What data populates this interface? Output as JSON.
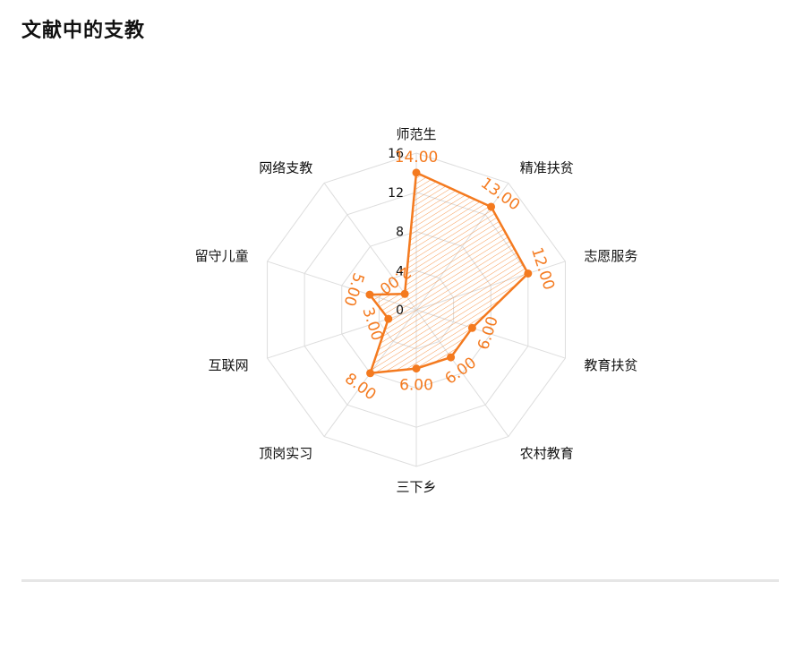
{
  "title": "文献中的支教",
  "colors": {
    "accent": "#f47a1f",
    "grid": "#dddddd",
    "text": "#111111",
    "divider": "#e6e6e6"
  },
  "chart_data": {
    "type": "radar",
    "title": "文献中的支教",
    "categories": [
      "师范生",
      "精准扶贫",
      "志愿服务",
      "教育扶贫",
      "农村教育",
      "三下乡",
      "顶岗实习",
      "互联网",
      "留守儿童",
      "网络支教"
    ],
    "values": [
      14,
      13,
      12,
      6,
      6,
      6,
      8,
      3,
      5,
      2
    ],
    "value_labels": [
      "14.00",
      "13.00",
      "12.00",
      "6.00",
      "6.00",
      "6.00",
      "8.00",
      "3.00",
      "5.00",
      "2.00"
    ],
    "radial_ticks": [
      "0",
      "4",
      "8",
      "12",
      "16"
    ],
    "rmax": 16,
    "grid": true
  }
}
